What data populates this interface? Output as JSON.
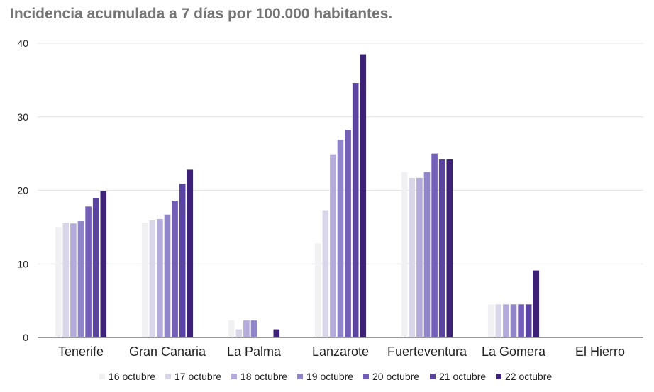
{
  "chart_data": {
    "type": "bar",
    "title": "Incidencia acumulada a 7 días por 100.000 habitantes.",
    "categories": [
      "Tenerife",
      "Gran Canaria",
      "La Palma",
      "Lanzarote",
      "Fuerteventura",
      "La Gomera",
      "El Hierro"
    ],
    "series": [
      {
        "name": "16 octubre",
        "color": "#f1f1f3",
        "values": [
          15.0,
          15.6,
          2.3,
          12.8,
          22.5,
          4.5,
          0
        ]
      },
      {
        "name": "17 octubre",
        "color": "#d9d6ea",
        "values": [
          15.6,
          15.9,
          1.1,
          17.3,
          21.7,
          4.5,
          0
        ]
      },
      {
        "name": "18 octubre",
        "color": "#b4abda",
        "values": [
          15.5,
          16.1,
          2.3,
          24.9,
          21.7,
          4.5,
          0
        ]
      },
      {
        "name": "19 octubre",
        "color": "#9185c9",
        "values": [
          15.8,
          16.7,
          2.3,
          26.9,
          22.5,
          4.5,
          0
        ]
      },
      {
        "name": "20 octubre",
        "color": "#735fb8",
        "values": [
          17.8,
          18.6,
          0,
          28.2,
          25.0,
          4.5,
          0
        ]
      },
      {
        "name": "21 octubre",
        "color": "#5a449f",
        "values": [
          18.9,
          20.9,
          0,
          34.6,
          24.2,
          4.5,
          0
        ]
      },
      {
        "name": "22 octubre",
        "color": "#3d2177",
        "values": [
          19.9,
          22.8,
          1.1,
          38.5,
          24.2,
          9.1,
          0
        ]
      }
    ],
    "ylim": [
      0,
      40
    ],
    "yticks": [
      0,
      10,
      20,
      30,
      40
    ],
    "grid": true,
    "legend": "bottom",
    "xlabel": "",
    "ylabel": ""
  }
}
